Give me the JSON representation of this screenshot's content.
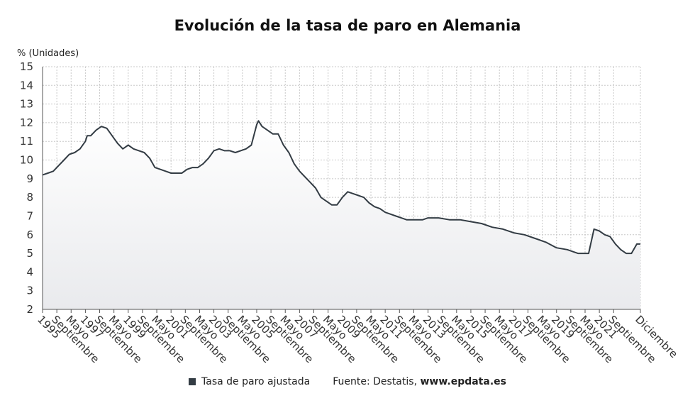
{
  "chart_data": {
    "type": "area",
    "title": "Evolución de la tasa de paro en Alemania",
    "ylabel": "% (Unidades)",
    "xlabel": "",
    "ylim": [
      2,
      15
    ],
    "yticks": [
      2,
      3,
      4,
      5,
      6,
      7,
      8,
      9,
      10,
      11,
      12,
      13,
      14,
      15
    ],
    "xlim": [
      "1995-01",
      "2022-12"
    ],
    "grid": true,
    "xtick_labels": [
      {
        "date": "1995-01",
        "text": "1995"
      },
      {
        "date": "1995-09",
        "text": "Septiembre"
      },
      {
        "date": "1996-05",
        "text": "Mayo"
      },
      {
        "date": "1997-01",
        "text": "1997"
      },
      {
        "date": "1997-09",
        "text": "Septiembre"
      },
      {
        "date": "1998-05",
        "text": "Mayo"
      },
      {
        "date": "1999-01",
        "text": "1999"
      },
      {
        "date": "1999-09",
        "text": "Septiembre"
      },
      {
        "date": "2000-05",
        "text": "Mayo"
      },
      {
        "date": "2001-01",
        "text": "2001"
      },
      {
        "date": "2001-09",
        "text": "Septiembre"
      },
      {
        "date": "2002-05",
        "text": "Mayo"
      },
      {
        "date": "2003-01",
        "text": "2003"
      },
      {
        "date": "2003-09",
        "text": "Septiembre"
      },
      {
        "date": "2004-05",
        "text": "Mayo"
      },
      {
        "date": "2005-01",
        "text": "2005"
      },
      {
        "date": "2005-09",
        "text": "Septiembre"
      },
      {
        "date": "2006-05",
        "text": "Mayo"
      },
      {
        "date": "2007-01",
        "text": "2007"
      },
      {
        "date": "2007-09",
        "text": "Septiembre"
      },
      {
        "date": "2008-05",
        "text": "Mayo"
      },
      {
        "date": "2009-01",
        "text": "2009"
      },
      {
        "date": "2009-09",
        "text": "Septiembre"
      },
      {
        "date": "2010-05",
        "text": "Mayo"
      },
      {
        "date": "2011-01",
        "text": "2011"
      },
      {
        "date": "2011-09",
        "text": "Septiembre"
      },
      {
        "date": "2012-05",
        "text": "Mayo"
      },
      {
        "date": "2013-01",
        "text": "2013"
      },
      {
        "date": "2013-09",
        "text": "Septiembre"
      },
      {
        "date": "2014-05",
        "text": "Mayo"
      },
      {
        "date": "2015-01",
        "text": "2015"
      },
      {
        "date": "2015-09",
        "text": "Septiembre"
      },
      {
        "date": "2016-05",
        "text": "Mayo"
      },
      {
        "date": "2017-01",
        "text": "2017"
      },
      {
        "date": "2017-09",
        "text": "Septiembre"
      },
      {
        "date": "2018-05",
        "text": "Mayo"
      },
      {
        "date": "2019-01",
        "text": "2019"
      },
      {
        "date": "2019-09",
        "text": "Septiembre"
      },
      {
        "date": "2020-05",
        "text": "Mayo"
      },
      {
        "date": "2021-01",
        "text": "2021"
      },
      {
        "date": "2021-09",
        "text": "Septiembre"
      },
      {
        "date": "2022-12",
        "text": "Diciembre"
      }
    ],
    "series": [
      {
        "name": "Tasa de paro ajustada",
        "color": "#333c44",
        "x": [
          "1995-01",
          "1995-04",
          "1995-07",
          "1995-10",
          "1996-01",
          "1996-04",
          "1996-07",
          "1996-10",
          "1997-01",
          "1997-02",
          "1997-04",
          "1997-07",
          "1997-10",
          "1998-01",
          "1998-04",
          "1998-07",
          "1998-10",
          "1999-01",
          "1999-04",
          "1999-07",
          "1999-10",
          "2000-01",
          "2000-04",
          "2000-07",
          "2000-10",
          "2001-01",
          "2001-04",
          "2001-07",
          "2001-10",
          "2002-01",
          "2002-04",
          "2002-07",
          "2002-10",
          "2003-01",
          "2003-04",
          "2003-07",
          "2003-10",
          "2004-01",
          "2004-04",
          "2004-07",
          "2004-10",
          "2005-01",
          "2005-02",
          "2005-04",
          "2005-07",
          "2005-10",
          "2006-01",
          "2006-04",
          "2006-07",
          "2006-10",
          "2007-01",
          "2007-04",
          "2007-07",
          "2007-10",
          "2008-01",
          "2008-04",
          "2008-07",
          "2008-10",
          "2009-01",
          "2009-04",
          "2009-07",
          "2009-10",
          "2010-01",
          "2010-04",
          "2010-07",
          "2010-10",
          "2011-01",
          "2011-04",
          "2011-07",
          "2011-10",
          "2012-01",
          "2012-04",
          "2012-07",
          "2012-10",
          "2013-01",
          "2013-07",
          "2014-01",
          "2014-07",
          "2015-01",
          "2015-07",
          "2016-01",
          "2016-07",
          "2017-01",
          "2017-07",
          "2018-01",
          "2018-07",
          "2019-01",
          "2019-07",
          "2020-01",
          "2020-03",
          "2020-05",
          "2020-07",
          "2020-10",
          "2021-01",
          "2021-04",
          "2021-07",
          "2021-10",
          "2022-01",
          "2022-04",
          "2022-07",
          "2022-10",
          "2022-12"
        ],
        "values": [
          9.2,
          9.3,
          9.4,
          9.7,
          10.0,
          10.3,
          10.4,
          10.6,
          11.0,
          11.3,
          11.3,
          11.6,
          11.8,
          11.7,
          11.3,
          10.9,
          10.6,
          10.8,
          10.6,
          10.5,
          10.4,
          10.1,
          9.6,
          9.5,
          9.4,
          9.3,
          9.3,
          9.3,
          9.5,
          9.6,
          9.6,
          9.8,
          10.1,
          10.5,
          10.6,
          10.5,
          10.5,
          10.4,
          10.5,
          10.6,
          10.8,
          11.9,
          12.1,
          11.8,
          11.6,
          11.4,
          11.4,
          10.8,
          10.4,
          9.8,
          9.4,
          9.1,
          8.8,
          8.5,
          8.0,
          7.8,
          7.6,
          7.6,
          8.0,
          8.3,
          8.2,
          8.1,
          8.0,
          7.7,
          7.5,
          7.4,
          7.2,
          7.1,
          7.0,
          6.9,
          6.8,
          6.8,
          6.8,
          6.8,
          6.9,
          6.9,
          6.8,
          6.8,
          6.7,
          6.6,
          6.4,
          6.3,
          6.1,
          6.0,
          5.8,
          5.6,
          5.3,
          5.2,
          5.0,
          5.0,
          5.0,
          5.0,
          6.3,
          6.2,
          6.0,
          5.9,
          5.5,
          5.2,
          5.0,
          5.0,
          5.5,
          5.5
        ]
      }
    ]
  },
  "legend": {
    "series_label": "Tasa de paro ajustada",
    "source_prefix": "Fuente: Destatis, ",
    "source_site": "www.epdata.es"
  }
}
